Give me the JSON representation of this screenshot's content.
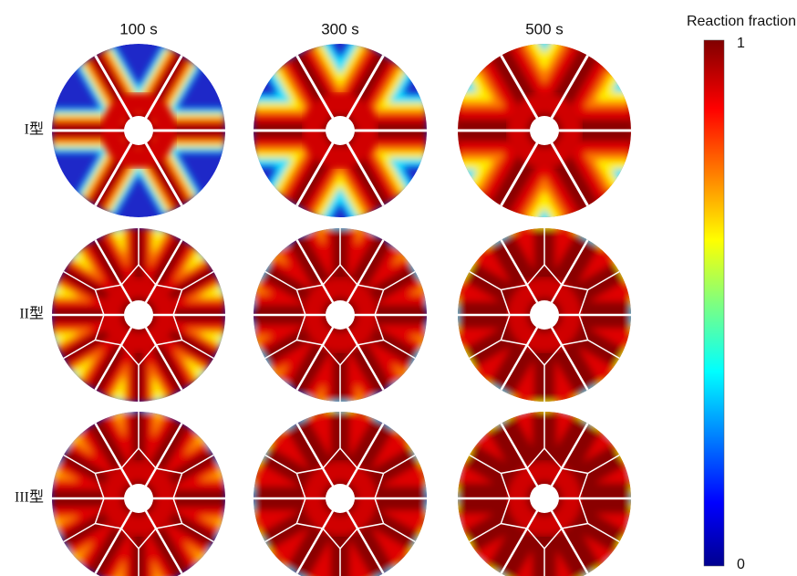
{
  "columns": [
    "100 s",
    "300 s",
    "500 s"
  ],
  "rows": [
    "I型",
    "II型",
    "III型"
  ],
  "colorbar": {
    "title": "Reaction fraction",
    "ticks": [
      1,
      0
    ]
  }
}
